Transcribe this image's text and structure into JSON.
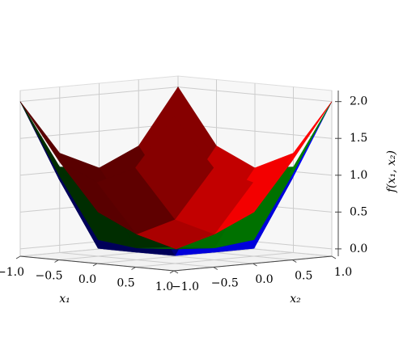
{
  "chart_data": {
    "type": "surface3d",
    "x_label": "x₁",
    "y_label": "x₂",
    "z_label": "f(x₁, x₂)",
    "x": [
      -1,
      -0.5,
      0,
      0.5,
      1
    ],
    "y": [
      -1,
      -0.5,
      0,
      0.5,
      1
    ],
    "xlim": [
      -1,
      1
    ],
    "ylim": [
      -1,
      1
    ],
    "zlim": [
      -0.1,
      2.15
    ],
    "xticks": [
      {
        "value": -1,
        "label": "−1.0"
      },
      {
        "value": -0.5,
        "label": "−0.5"
      },
      {
        "value": 0,
        "label": "0.0"
      },
      {
        "value": 0.5,
        "label": "0.5"
      },
      {
        "value": 1,
        "label": "1.0"
      }
    ],
    "yticks": [
      {
        "value": -1,
        "label": "−1.0"
      },
      {
        "value": -0.5,
        "label": "−0.5"
      },
      {
        "value": 0,
        "label": "0.0"
      },
      {
        "value": 0.5,
        "label": "0.5"
      },
      {
        "value": 1,
        "label": "1.0"
      }
    ],
    "zticks": [
      {
        "value": 0,
        "label": "0.0"
      },
      {
        "value": 0.5,
        "label": "0.5"
      },
      {
        "value": 1,
        "label": "1.0"
      },
      {
        "value": 1.5,
        "label": "1.5"
      },
      {
        "value": 2,
        "label": "2.0"
      }
    ],
    "grid": true,
    "series": [
      {
        "color": "#0000ff",
        "z": [
          [
            2,
            1.0039,
            1,
            1.0039,
            2
          ],
          [
            1.0039,
            0.0078,
            0.0039,
            0.0078,
            1.0039
          ],
          [
            1,
            0.0039,
            0,
            0.0039,
            1
          ],
          [
            1.0039,
            0.0078,
            0.0039,
            0.0078,
            1.0039
          ],
          [
            2,
            1.0039,
            1,
            1.0039,
            2
          ]
        ]
      },
      {
        "color": "#008000",
        "z": [
          [
            2,
            1.0625,
            1,
            1.0625,
            2
          ],
          [
            1.0625,
            0.125,
            0.0625,
            0.125,
            1.0625
          ],
          [
            1,
            0.0625,
            0,
            0.0625,
            1
          ],
          [
            1.0625,
            0.125,
            0.0625,
            0.125,
            1.0625
          ],
          [
            2,
            1.0625,
            1,
            1.0625,
            2
          ]
        ]
      },
      {
        "color": "#ff0000",
        "z": [
          [
            2,
            1.25,
            1,
            1.25,
            2
          ],
          [
            1.25,
            0.5,
            0.25,
            0.5,
            1.25
          ],
          [
            1,
            0.25,
            0,
            0.25,
            1
          ],
          [
            1.25,
            0.5,
            0.25,
            0.5,
            1.25
          ],
          [
            2,
            1.25,
            1,
            1.25,
            2
          ]
        ]
      }
    ]
  }
}
